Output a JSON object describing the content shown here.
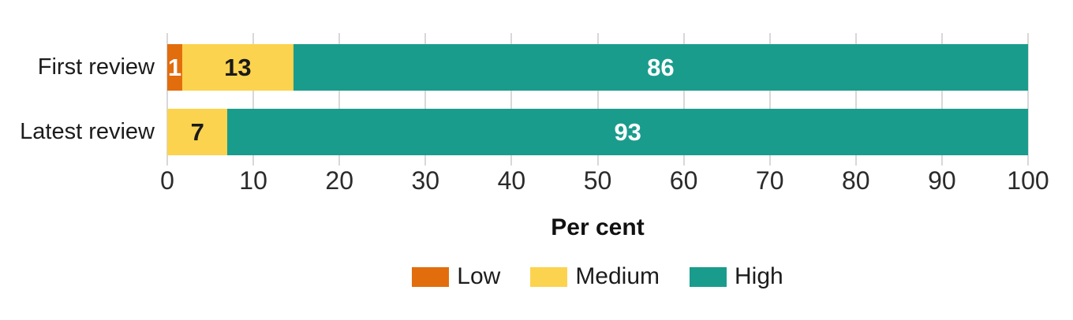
{
  "chart_data": {
    "type": "bar",
    "orientation": "horizontal-stacked",
    "title": "",
    "categories": [
      "First review",
      "Latest review"
    ],
    "series": [
      {
        "name": "Low",
        "color": "#e26d0d",
        "label_color": "#ffffff",
        "values": [
          1,
          0
        ]
      },
      {
        "name": "Medium",
        "color": "#fcd34f",
        "label_color": "#1a1a1a",
        "values": [
          13,
          7
        ]
      },
      {
        "name": "High",
        "color": "#1a9c8c",
        "label_color": "#ffffff",
        "values": [
          86,
          93
        ]
      }
    ],
    "xlabel": "Per cent",
    "ylabel": "",
    "xlim": [
      0,
      100
    ],
    "x_ticks": [
      0,
      10,
      20,
      30,
      40,
      50,
      60,
      70,
      80,
      90,
      100
    ],
    "grid": "vertical",
    "gridline_color": "#d8d8d8",
    "legend_position": "bottom",
    "legend_entries": [
      "Low",
      "Medium",
      "High"
    ],
    "text_color": "#1c1c1c"
  }
}
